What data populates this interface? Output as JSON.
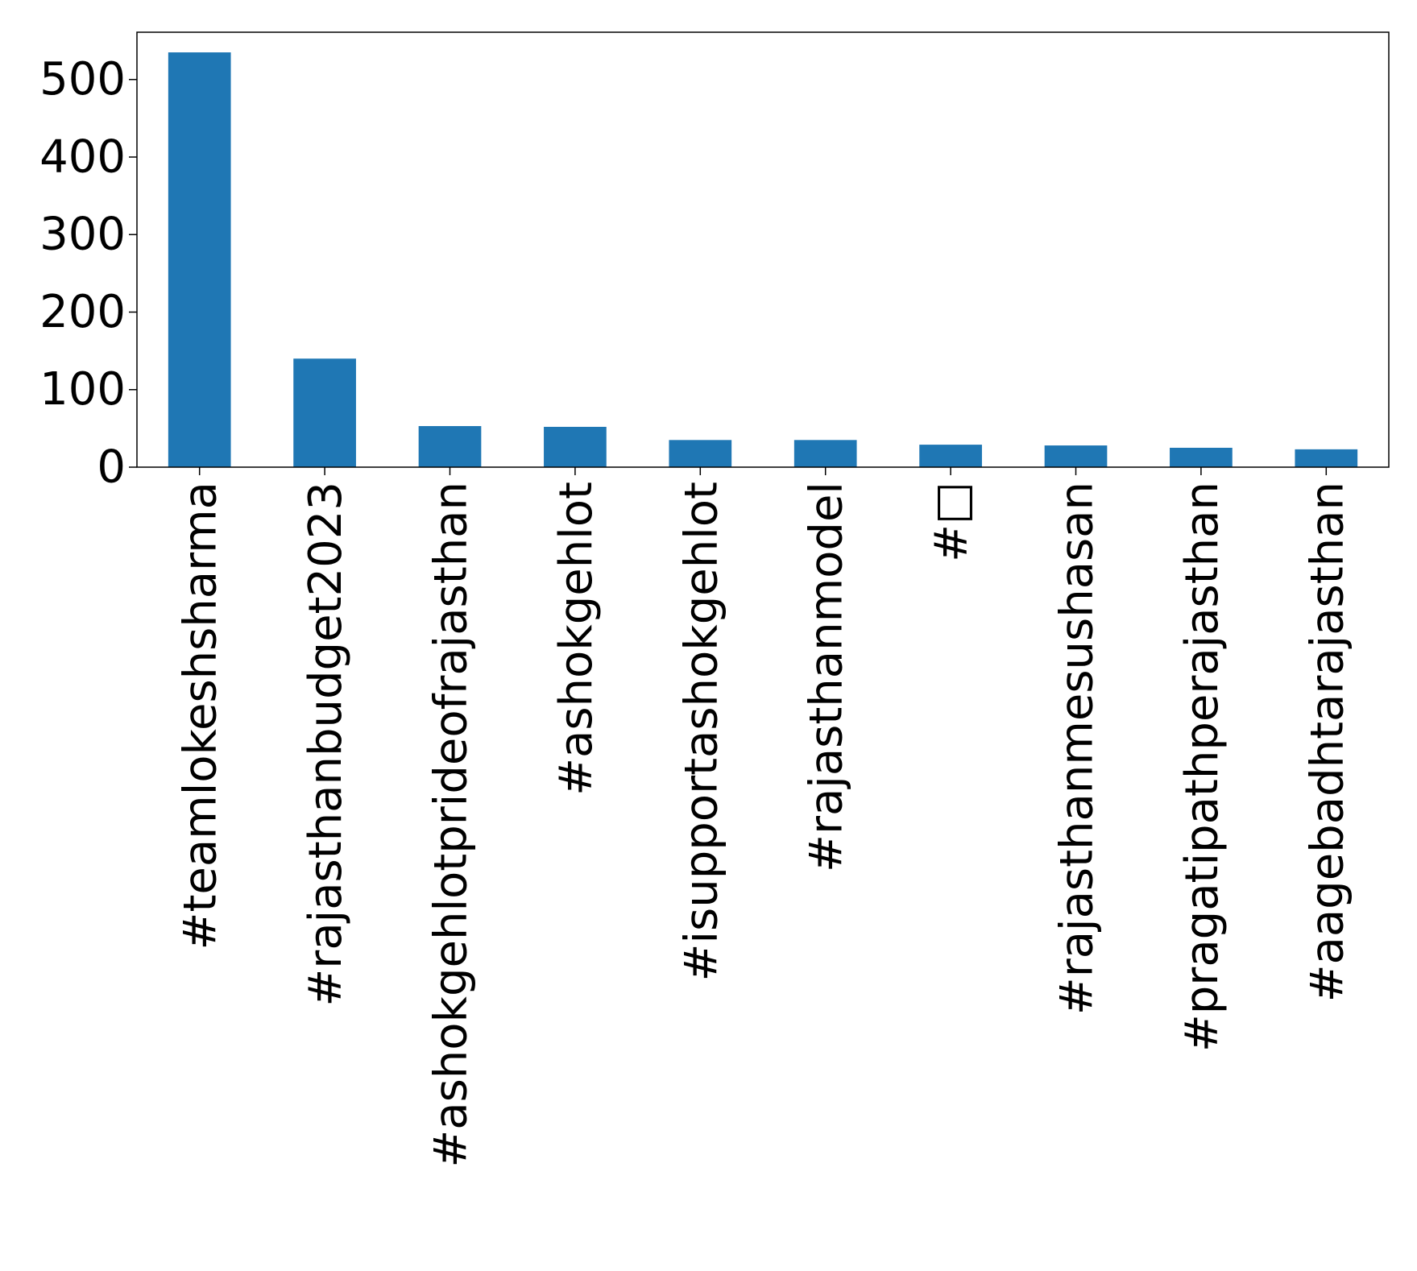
{
  "chart_data": {
    "type": "bar",
    "title": "",
    "xlabel": "",
    "ylabel": "",
    "categories": [
      "#teamlokeshsharma",
      "#rajasthanbudget2023",
      "#ashokgehlotprideofrajasthan",
      "#ashokgehlot",
      "#isupportashokgehlot",
      "#rajasthanmodel",
      "#□",
      "#rajasthanmesushasan",
      "#pragatipathperajasthan",
      "#aagebadhtarajasthan"
    ],
    "values": [
      535,
      140,
      53,
      52,
      35,
      35,
      29,
      28,
      25,
      23
    ],
    "ylim": [
      0,
      561
    ],
    "yticks": [
      "0",
      "100",
      "200",
      "300",
      "400",
      "500"
    ],
    "bar_color": "#1f77b4",
    "grid": false,
    "legend": "none"
  }
}
